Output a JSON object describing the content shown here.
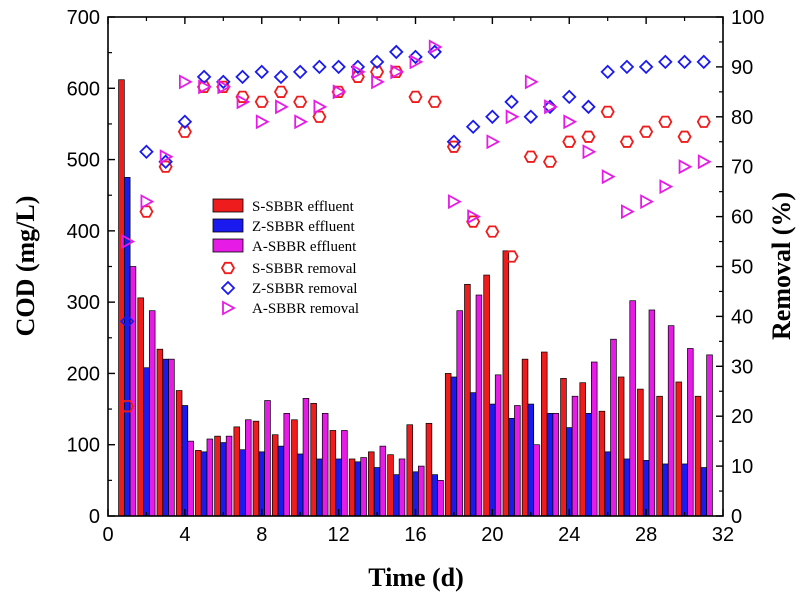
{
  "chart_data": {
    "type": "bar+scatter",
    "xlabel": "Time (d)",
    "ylabel_left": "COD (mg/L)",
    "ylabel_right": "Removal (%)",
    "xlim": [
      0,
      32
    ],
    "ylim_left": [
      0,
      700
    ],
    "ylim_right": [
      0,
      100
    ],
    "x_ticks": [
      "0",
      "4",
      "8",
      "12",
      "16",
      "20",
      "24",
      "28",
      "32"
    ],
    "y_left_ticks": [
      "0",
      "100",
      "200",
      "300",
      "400",
      "500",
      "600",
      "700"
    ],
    "y_right_ticks": [
      "0",
      "10",
      "20",
      "30",
      "40",
      "50",
      "60",
      "70",
      "80",
      "90",
      "100"
    ],
    "grid": false,
    "legend_position": "center-left",
    "days": [
      1,
      2,
      3,
      4,
      5,
      6,
      7,
      8,
      9,
      10,
      11,
      12,
      13,
      14,
      15,
      16,
      17,
      18,
      19,
      20,
      21,
      22,
      23,
      24,
      25,
      26,
      27,
      28,
      29,
      30,
      31
    ],
    "bar_series": [
      {
        "name": "S-SBBR effluent",
        "color": "#ee1c1c",
        "values": [
          612,
          306,
          234,
          176,
          92,
          112,
          125,
          133,
          114,
          135,
          158,
          120,
          80,
          90,
          86,
          128,
          130,
          200,
          325,
          338,
          372,
          220,
          230,
          193,
          187,
          147,
          195,
          178,
          168,
          188,
          168
        ]
      },
      {
        "name": "Z-SBBR effluent",
        "color": "#1a1aee",
        "values": [
          475,
          208,
          220,
          155,
          90,
          103,
          93,
          90,
          98,
          87,
          80,
          80,
          76,
          68,
          58,
          62,
          58,
          195,
          173,
          157,
          137,
          157,
          144,
          124,
          144,
          90,
          80,
          78,
          73,
          73,
          68
        ]
      },
      {
        "name": "A-SBBR effluent",
        "color": "#e61ce6",
        "values": [
          350,
          288,
          220,
          105,
          108,
          112,
          135,
          162,
          144,
          165,
          144,
          120,
          82,
          98,
          80,
          70,
          50,
          288,
          310,
          198,
          155,
          100,
          144,
          168,
          216,
          248,
          302,
          289,
          267,
          235,
          226
        ]
      }
    ],
    "scatter_series": [
      {
        "name": "S-SBBR removal",
        "color": "#ee1c1c",
        "marker": "hexagon",
        "values": [
          22,
          61,
          70,
          77,
          86,
          86,
          84,
          83,
          85,
          83,
          80,
          85,
          88,
          89,
          89,
          84,
          83,
          74,
          59,
          57,
          52,
          72,
          71,
          75,
          76,
          81,
          75,
          77,
          79,
          76,
          79
        ]
      },
      {
        "name": "Z-SBBR removal",
        "color": "#1a1aee",
        "marker": "diamond",
        "values": [
          39,
          73,
          71,
          79,
          88,
          87,
          88,
          89,
          88,
          89,
          90,
          90,
          90,
          91,
          93,
          92,
          93,
          75,
          78,
          80,
          83,
          80,
          82,
          84,
          82,
          89,
          90,
          90,
          91,
          91,
          91
        ]
      },
      {
        "name": "A-SBBR removal",
        "color": "#e61ce6",
        "marker": "triangle-right",
        "values": [
          55,
          63,
          72,
          87,
          86,
          86,
          83,
          79,
          82,
          79,
          82,
          85,
          89,
          87,
          89,
          91,
          94,
          63,
          60,
          75,
          80,
          87,
          82,
          79,
          73,
          68,
          61,
          63,
          66,
          70,
          71
        ]
      }
    ]
  }
}
